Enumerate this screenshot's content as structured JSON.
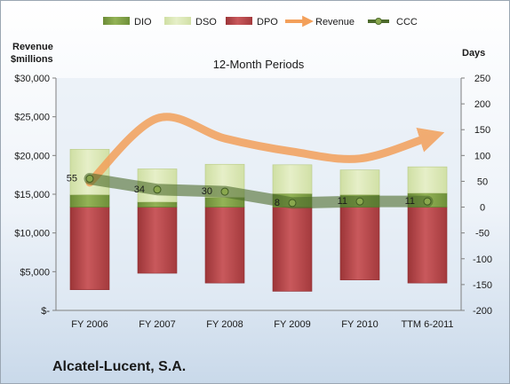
{
  "chart_data": {
    "type": "bar",
    "title": "12-Month Periods",
    "company": "Alcatel-Lucent, S.A.",
    "categories": [
      "FY 2006",
      "FY 2007",
      "FY 2008",
      "FY 2009",
      "FY 2010",
      "TTM 6-2011"
    ],
    "left_axis": {
      "label_line1": "Revenue",
      "label_line2": "$millions",
      "ylim": [
        0,
        30000
      ],
      "ticks": [
        0,
        5000,
        10000,
        15000,
        20000,
        25000,
        30000
      ],
      "tick_labels": [
        "$-",
        "$5,000",
        "$10,000",
        "$15,000",
        "$20,000",
        "$25,000",
        "$30,000"
      ]
    },
    "right_axis": {
      "label": "Days",
      "ylim": [
        -200,
        250
      ],
      "ticks": [
        -200,
        -150,
        -100,
        -50,
        0,
        50,
        100,
        150,
        200,
        250
      ],
      "tick_labels": [
        "-200",
        "-150",
        "-100",
        "-50",
        "0",
        "50",
        "100",
        "150",
        "200",
        "250"
      ]
    },
    "legend": {
      "position": "top",
      "items": [
        {
          "name": "DIO",
          "kind": "bar"
        },
        {
          "name": "DSO",
          "kind": "bar"
        },
        {
          "name": "DPO",
          "kind": "bar"
        },
        {
          "name": "Revenue",
          "kind": "arrow"
        },
        {
          "name": "CCC",
          "kind": "line"
        }
      ]
    },
    "series": {
      "DIO": [
        24,
        10,
        19,
        26,
        24,
        27
      ],
      "DSO": [
        88,
        64,
        64,
        56,
        48,
        51
      ],
      "DPO": [
        -160,
        -128,
        -147,
        -163,
        -141,
        -147
      ],
      "CCC": [
        55,
        34,
        30,
        8,
        11,
        11
      ],
      "Revenue": [
        16500,
        24800,
        22200,
        20500,
        19600,
        22300
      ]
    },
    "data_labels": {
      "CCC": [
        "55",
        "34",
        "30",
        "8",
        "11",
        "11"
      ]
    },
    "colors": {
      "DIO": "#7fa045",
      "DSO": "#d8e6b0",
      "DPO": "#b5474a",
      "Revenue": "#f3a05a",
      "CCC": "#4d6b2c"
    },
    "grid": false
  }
}
